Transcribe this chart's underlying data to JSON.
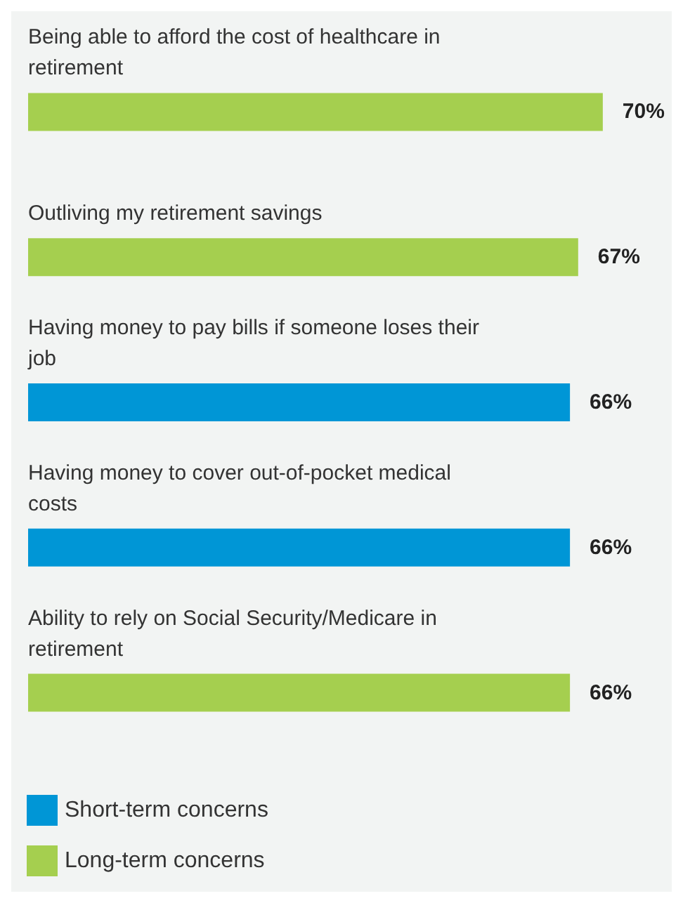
{
  "chart_data": {
    "type": "bar",
    "orientation": "horizontal",
    "categories": [
      "Being able to afford the cost of healthcare in retirement",
      "Outliving my retirement savings",
      "Having money to pay bills if someone loses their job",
      "Having money to cover out-of-pocket medical costs",
      "Ability to rely on Social Security/Medicare in retirement"
    ],
    "series": [
      {
        "name": "Short-term concerns",
        "color": "#0096d6",
        "values": [
          null,
          null,
          66,
          66,
          null
        ],
        "value_labels": [
          null,
          null,
          "66%",
          "66%",
          null
        ]
      },
      {
        "name": "Long-term concerns",
        "color": "#a5cf4f",
        "values": [
          70,
          67,
          null,
          null,
          66
        ],
        "value_labels": [
          "70%",
          "67%",
          null,
          null,
          "66%"
        ]
      }
    ],
    "legend": "bottom left"
  }
}
